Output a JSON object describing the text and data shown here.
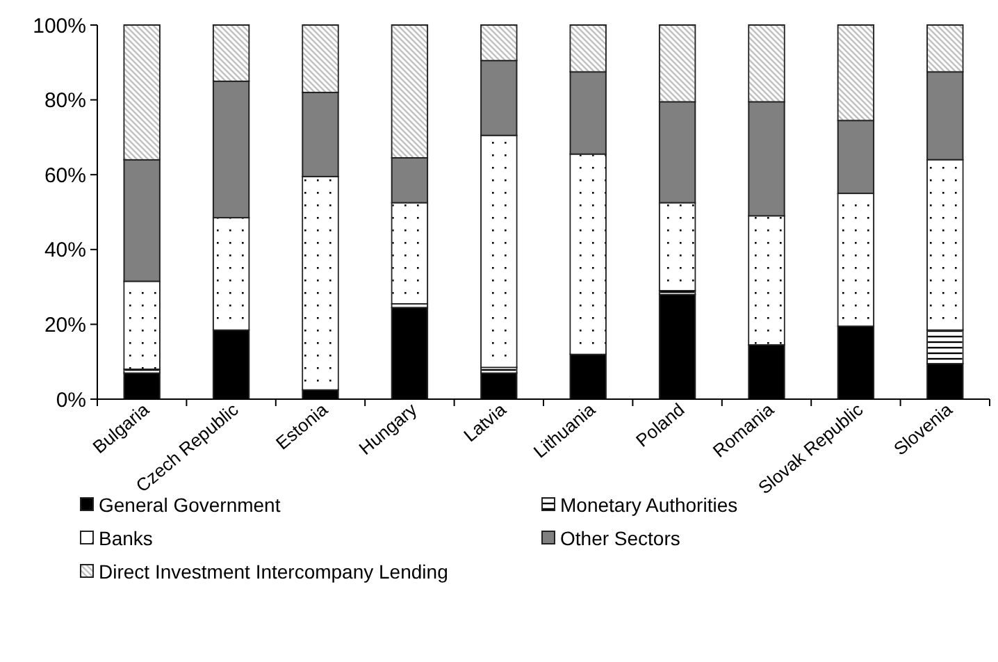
{
  "chart_data": {
    "type": "bar",
    "stacked": true,
    "categories": [
      "Bulgaria",
      "Czech Republic",
      "Estonia",
      "Hungary",
      "Latvia",
      "Lithuania",
      "Poland",
      "Romania",
      "Slovak Republic",
      "Slovenia"
    ],
    "series": [
      {
        "name": "General Government",
        "color": "#000000",
        "values": [
          7,
          18.5,
          2.5,
          24.5,
          7,
          12,
          28,
          14.5,
          19.5,
          9.5
        ]
      },
      {
        "name": "Monetary Authorities",
        "color": "#ffffff",
        "values": [
          1,
          0,
          0,
          1,
          1.5,
          0,
          1,
          0,
          0,
          9
        ]
      },
      {
        "name": "Banks",
        "color": "#ffffff",
        "values": [
          23.5,
          30,
          57,
          27,
          62,
          53.5,
          23.5,
          34.5,
          35.5,
          45.5
        ]
      },
      {
        "name": "Other Sectors",
        "color": "#808080",
        "values": [
          32.5,
          36.5,
          22.5,
          12,
          20,
          22,
          27,
          30.5,
          19.5,
          23.5
        ]
      },
      {
        "name": "Direct Investment Intercompany Lending",
        "color": "#c0c0c0",
        "values": [
          36,
          15,
          18,
          35.5,
          9.5,
          12.5,
          20.5,
          20.5,
          25.5,
          12.5
        ]
      }
    ],
    "ylim": [
      0,
      100
    ],
    "yticks": [
      {
        "value": 0,
        "label": "0%"
      },
      {
        "value": 20,
        "label": "20%"
      },
      {
        "value": 40,
        "label": "40%"
      },
      {
        "value": 60,
        "label": "60%"
      },
      {
        "value": 80,
        "label": "80%"
      },
      {
        "value": 100,
        "label": "100%"
      }
    ],
    "grid": false,
    "legend": "bottom"
  }
}
